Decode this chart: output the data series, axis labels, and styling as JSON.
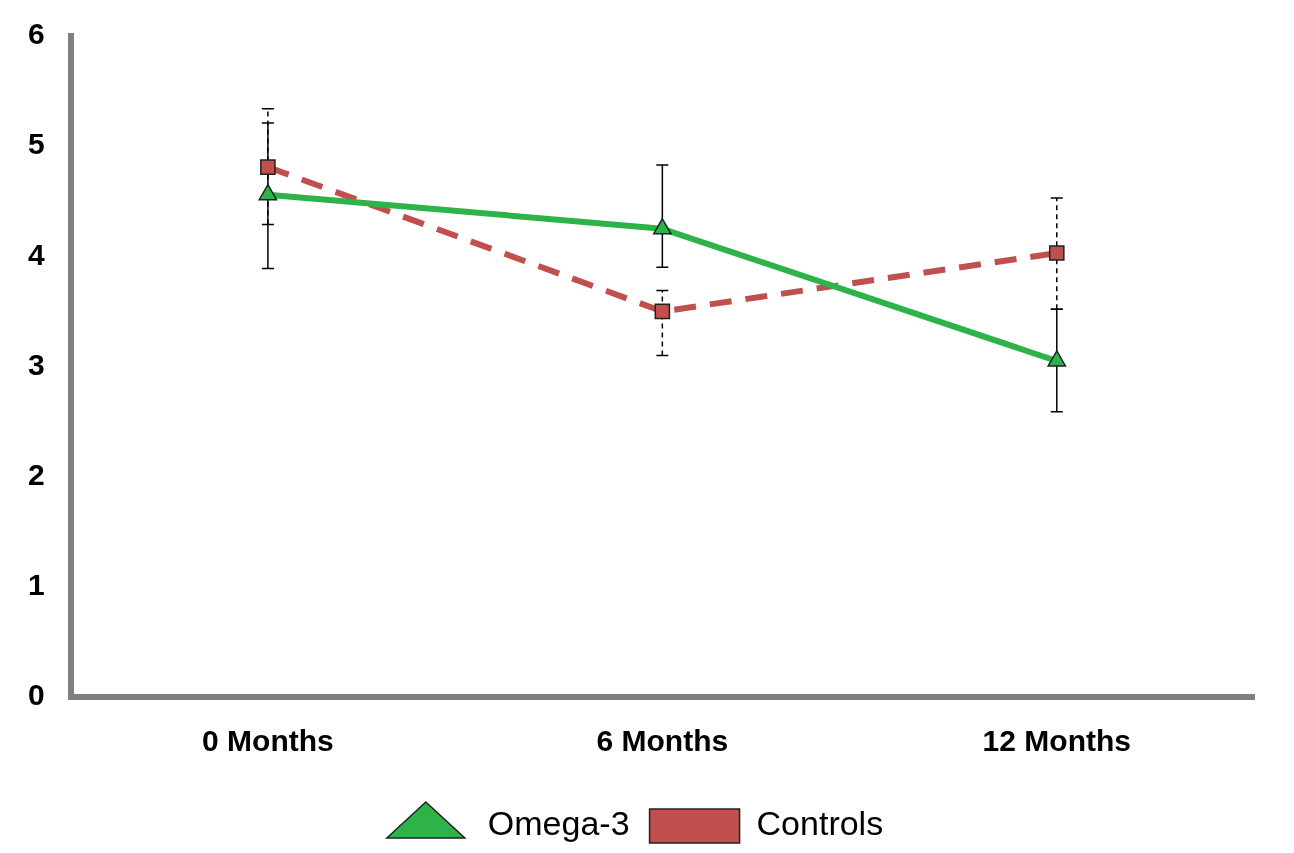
{
  "chart_data": {
    "type": "line",
    "categories": [
      "0 Months",
      "6 Months",
      "12 Months"
    ],
    "series": [
      {
        "name": "Omega-3",
        "color": "#2db34a",
        "marker": "triangle",
        "line_style": "solid",
        "values": [
          4.56,
          4.25,
          3.05
        ],
        "errors": [
          [
            3.89,
            5.21
          ],
          [
            3.9,
            4.83
          ],
          [
            2.59,
            3.52
          ]
        ]
      },
      {
        "name": "Controls",
        "color": "#c0504d",
        "marker": "square",
        "line_style": "dashed",
        "values": [
          4.81,
          3.5,
          4.03
        ],
        "errors": [
          [
            4.29,
            5.34
          ],
          [
            3.1,
            3.69
          ],
          [
            3.52,
            4.53
          ]
        ]
      }
    ],
    "ylim": [
      0,
      6
    ],
    "yticks": [
      0,
      1,
      2,
      3,
      4,
      5,
      6
    ],
    "grid": false,
    "legend": "bottom"
  }
}
